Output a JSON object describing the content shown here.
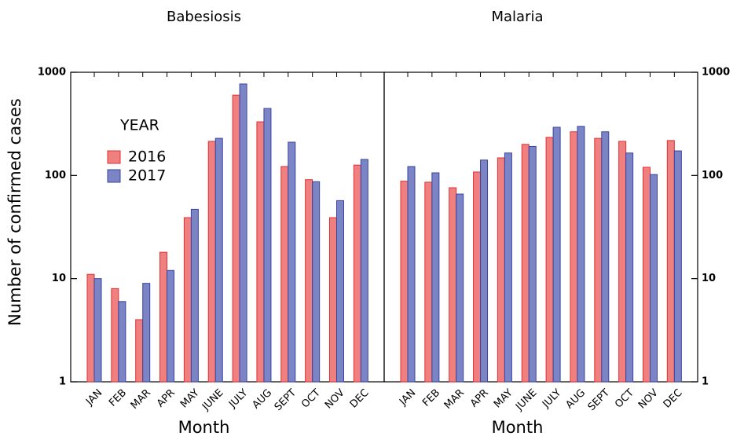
{
  "chart_data": [
    {
      "type": "bar",
      "title": "Babesiosis",
      "xlabel": "Month",
      "ylabel": "Number of confirmed cases",
      "categories": [
        "JAN",
        "FEB",
        "MAR",
        "APR",
        "MAY",
        "JUNE",
        "JULY",
        "AUG",
        "SEPT",
        "OCT",
        "NOV",
        "DEC"
      ],
      "series": [
        {
          "name": "2016",
          "color": "#f08080",
          "values": [
            11,
            8,
            4,
            18,
            39,
            214,
            600,
            331,
            122,
            91,
            39,
            126
          ]
        },
        {
          "name": "2017",
          "color": "#7b84c4",
          "values": [
            10,
            6,
            9,
            12,
            47,
            229,
            770,
            446,
            210,
            87,
            57,
            143
          ]
        }
      ],
      "ylim": [
        1,
        1000
      ],
      "yticks": [
        1,
        10,
        100,
        1000
      ],
      "log_y": true,
      "ytick_side": "left",
      "legend_title": "YEAR",
      "legend": "upper left"
    },
    {
      "type": "bar",
      "title": "Malaria",
      "xlabel": "Month",
      "categories": [
        "JAN",
        "FEB",
        "MAR",
        "APR",
        "MAY",
        "JUNE",
        "JULY",
        "AUG",
        "SEPT",
        "OCT",
        "NOV",
        "DEC"
      ],
      "series": [
        {
          "color": "#f08080",
          "values": [
            88,
            86,
            76,
            108,
            148,
            200,
            234,
            265,
            229,
            214,
            120,
            218
          ]
        },
        {
          "color": "#7b84c4",
          "values": [
            122,
            106,
            66,
            141,
            165,
            191,
            293,
            299,
            265,
            165,
            102,
            173
          ]
        }
      ],
      "ylim": [
        1,
        1000
      ],
      "yticks": [
        1,
        10,
        100,
        1000
      ],
      "log_y": true,
      "ytick_side": "right"
    }
  ]
}
